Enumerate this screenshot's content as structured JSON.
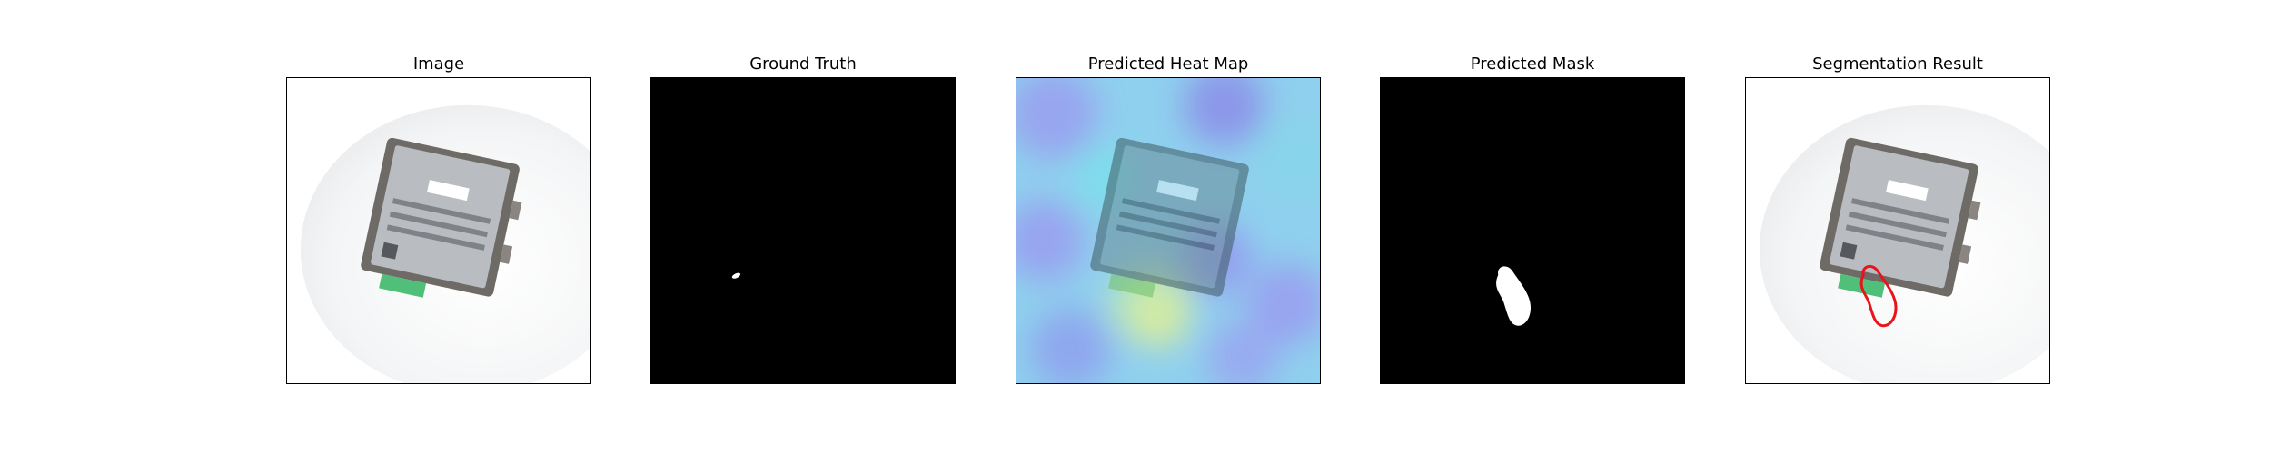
{
  "figure": {
    "panels": [
      {
        "title": "Image"
      },
      {
        "title": "Ground Truth"
      },
      {
        "title": "Predicted Heat Map"
      },
      {
        "title": "Predicted Mask"
      },
      {
        "title": "Segmentation Result"
      }
    ]
  },
  "colors": {
    "mask_background": "#000000",
    "mask_foreground": "#ffffff",
    "contour": "#e8141a"
  }
}
